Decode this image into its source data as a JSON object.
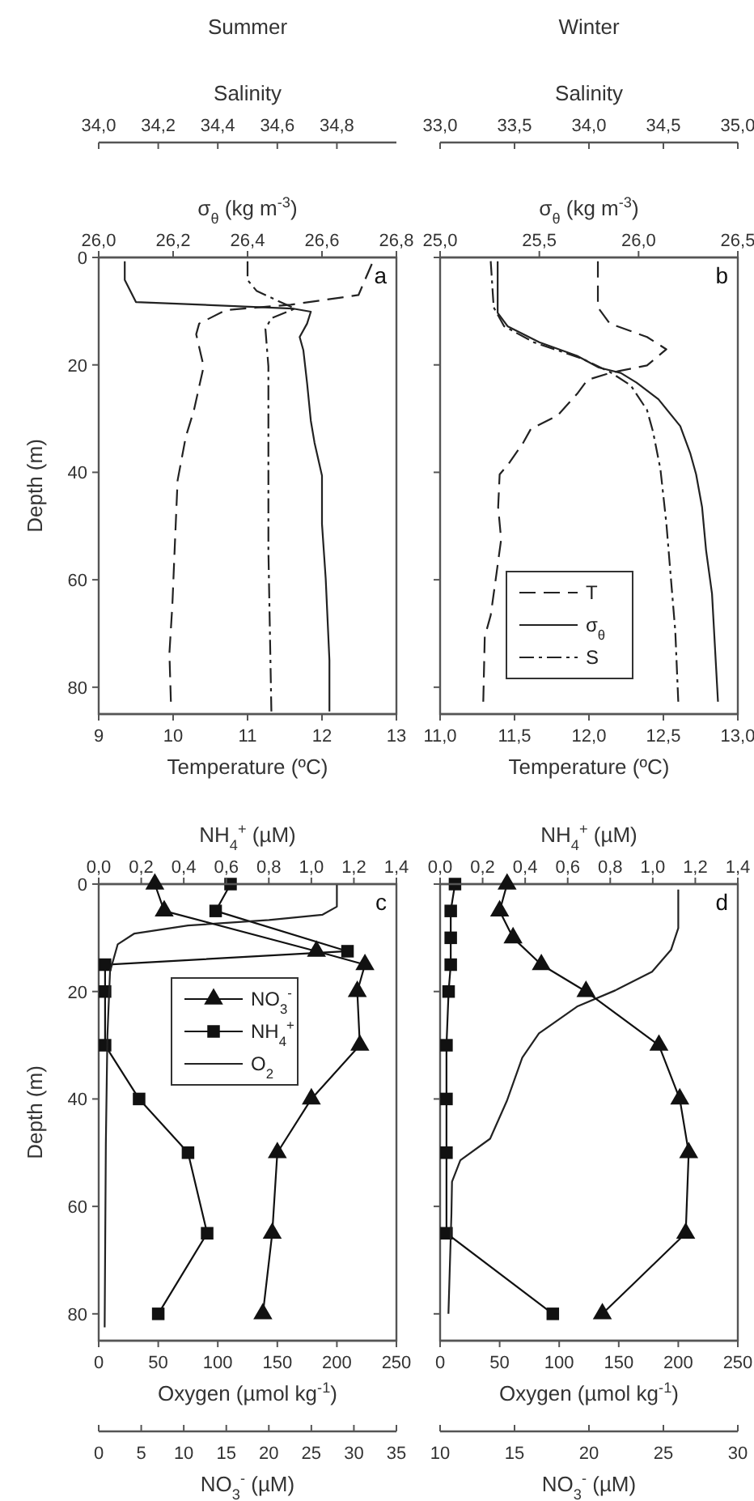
{
  "chart_data": [
    {
      "type": "line",
      "title": "Summer",
      "xlabel": "Temperature (ºC)",
      "x2label": "σ$_{θ}$ (kg m$^{-3}$)",
      "ylabel": "Depth (m)",
      "annotations": [
        "a"
      ],
      "xlim": [
        9,
        13
      ],
      "xticks": [
        9,
        10,
        11,
        12,
        13
      ],
      "x2lim": [
        26,
        26.8
      ],
      "x2ticks": [
        {
          "value": 26,
          "label": "26,0"
        },
        {
          "value": 26.2,
          "label": "26,2"
        },
        {
          "value": 26.4,
          "label": "26,4"
        },
        {
          "value": 26.6,
          "label": "26,6"
        },
        {
          "value": 26.8,
          "label": "26,8"
        }
      ],
      "ylim": [
        85,
        0
      ],
      "yticks": [
        0,
        20,
        40,
        60,
        80
      ],
      "series": [
        {
          "color": "#222222",
          "line_style": "dashed",
          "x": [
            12.67,
            12.49,
            11.58,
            10.71,
            10.35,
            10.31,
            10.41,
            10.28,
            10.17,
            10.06,
            10.02,
            9.99,
            9.95,
            9.97
          ],
          "values": [
            1.2,
            7,
            8.8,
            9.8,
            12.3,
            14.3,
            20.3,
            28.4,
            33.4,
            41.5,
            54.5,
            64.6,
            73.7,
            82.7
          ]
        },
        {
          "color": "#222222",
          "line_style": "solid",
          "axis": "x2",
          "x": [
            26.07,
            26.07,
            26.1,
            26.52,
            26.57,
            26.56,
            26.54,
            26.55,
            26.56,
            26.57,
            26.58,
            26.6,
            26.6,
            26.61,
            26.62,
            26.62
          ],
          "values": [
            0.7,
            4.2,
            8.3,
            9.5,
            10.1,
            12.3,
            14.8,
            17.3,
            23.4,
            30.4,
            34.5,
            40.6,
            49.6,
            59.8,
            75,
            84.5
          ]
        }
      ]
    },
    {
      "type": "line",
      "xlabel": "Salinity",
      "tick_labels": "x",
      "xlim": [
        34,
        35
      ],
      "xticks": [
        {
          "value": 34,
          "label": "34,0"
        },
        {
          "value": 34.2,
          "label": "34,2"
        },
        {
          "value": 34.4,
          "label": "34,4"
        },
        {
          "value": 34.6,
          "label": "34,6"
        },
        {
          "value": 34.8,
          "label": "34,8"
        }
      ],
      "ylim": [
        85,
        0
      ],
      "series": [
        {
          "color": "#222222",
          "line_style": "dashdot",
          "x": [
            34.5,
            34.5,
            34.53,
            34.61,
            34.66,
            34.58,
            34.56,
            34.57,
            34.57,
            34.57,
            34.58
          ],
          "values": [
            0.7,
            4.2,
            6.2,
            8.3,
            9.5,
            11.3,
            13.3,
            20.3,
            34.5,
            54.5,
            84.5
          ]
        }
      ]
    },
    {
      "type": "line",
      "title": "Winter",
      "xlabel": "Temperature (ºC)",
      "x2label": "σ$_{θ}$ (kg m$^{-3}$)",
      "annotations": [
        "b"
      ],
      "tick_labels": "x",
      "legend": "bottom",
      "xlim": [
        11,
        13
      ],
      "xticks": [
        {
          "value": 11,
          "label": "11,0"
        },
        {
          "value": 11.5,
          "label": "11,5"
        },
        {
          "value": 12,
          "label": "12,0"
        },
        {
          "value": 12.5,
          "label": "12,5"
        },
        {
          "value": 13,
          "label": "13,0"
        }
      ],
      "x2lim": [
        25,
        26.5
      ],
      "x2ticks": [
        {
          "value": 25,
          "label": "25,0"
        },
        {
          "value": 25.5,
          "label": "25,5"
        },
        {
          "value": 26,
          "label": "26,0"
        },
        {
          "value": 26.5,
          "label": "26,5"
        }
      ],
      "ylim": [
        85,
        0
      ],
      "yticks": [
        0,
        20,
        40,
        60,
        80
      ],
      "series": [
        {
          "name": "T",
          "color": "#222222",
          "line_style": "dashed",
          "x": [
            12.06,
            12.06,
            12.14,
            12.39,
            12.52,
            12.39,
            12.14,
            11.99,
            11.92,
            11.79,
            11.61,
            11.56,
            11.46,
            11.4,
            11.39,
            11.41,
            11.38,
            11.34,
            11.3,
            11.29
          ],
          "values": [
            0.7,
            9.3,
            12.3,
            14.8,
            17.1,
            20.1,
            21.5,
            22.8,
            25.4,
            29.4,
            31.9,
            34.4,
            38.4,
            40.4,
            46.5,
            52.5,
            58.6,
            66.6,
            70.6,
            82.7
          ]
        },
        {
          "name": "σ$_{θ}$",
          "color": "#222222",
          "line_style": "solid",
          "axis": "x2",
          "x": [
            25.29,
            25.29,
            25.34,
            25.5,
            25.69,
            25.8,
            25.91,
            25.99,
            26.1,
            26.21,
            26.26,
            26.29,
            26.32,
            26.34,
            26.37,
            26.4
          ],
          "values": [
            0.7,
            10.3,
            12.8,
            15.8,
            18.3,
            20.5,
            21.5,
            23.3,
            26.4,
            31.4,
            36.4,
            40.4,
            46.5,
            54.5,
            62.6,
            82.7
          ]
        }
      ]
    },
    {
      "type": "line",
      "xlabel": "Salinity",
      "tick_labels": "x",
      "xlim": [
        33,
        35
      ],
      "xticks": [
        {
          "value": 33,
          "label": "33,0"
        },
        {
          "value": 33.5,
          "label": "33,5"
        },
        {
          "value": 34,
          "label": "34,0"
        },
        {
          "value": 34.5,
          "label": "34,5"
        },
        {
          "value": 35,
          "label": "35,0"
        }
      ],
      "ylim": [
        85,
        0
      ],
      "series": [
        {
          "name": "S",
          "color": "#222222",
          "line_style": "dashdot",
          "x": [
            33.34,
            33.36,
            33.43,
            33.63,
            33.95,
            34.14,
            34.28,
            34.39,
            34.43,
            34.48,
            34.52,
            34.55,
            34.58,
            34.6
          ],
          "values": [
            0.7,
            9.3,
            12.8,
            15.8,
            18.8,
            21.3,
            23.8,
            28.4,
            32.4,
            39.4,
            49.5,
            59.6,
            69.6,
            82.7
          ]
        }
      ]
    },
    {
      "type": "line",
      "xlabel": "Oxygen (µmol kg$^{-1}$)",
      "x2label": "NH$_{4}$$^{+}$ (µM)",
      "ylabel": "Depth (m)",
      "annotations": [
        "c"
      ],
      "xlim": [
        0,
        250
      ],
      "xticks": [
        0,
        50,
        100,
        150,
        200,
        250
      ],
      "x2lim": [
        0,
        1.4
      ],
      "x2ticks": [
        {
          "value": 0,
          "label": "0,0"
        },
        {
          "value": 0.2,
          "label": "0,2"
        },
        {
          "value": 0.4,
          "label": "0,4"
        },
        {
          "value": 0.6,
          "label": "0,6"
        },
        {
          "value": 0.8,
          "label": "0,8"
        },
        {
          "value": 1,
          "label": "1,0"
        },
        {
          "value": 1.2,
          "label": "1,2"
        },
        {
          "value": 1.4,
          "label": "1,4"
        }
      ],
      "ylim": [
        85,
        0
      ],
      "yticks": [
        0,
        20,
        40,
        60,
        80
      ],
      "series": [
        {
          "name": "NH$_{4}$$^{+}$",
          "color": "#111111",
          "line_style": "solid",
          "marker": "square",
          "axis": "x2",
          "x": [
            0.62,
            0.55,
            1.17,
            0.03,
            0.03,
            0.03,
            0.19,
            0.42,
            0.51,
            0.28
          ],
          "values": [
            0,
            5,
            12.5,
            15,
            20,
            30,
            40,
            50,
            65,
            80
          ]
        },
        {
          "name": "O$_{2}$",
          "color": "#222222",
          "line_style": "solid",
          "x": [
            200,
            200,
            188,
            143,
            75,
            30,
            16,
            9.5,
            7.3,
            6,
            5
          ],
          "values": [
            0,
            4.2,
            5.7,
            6.7,
            7.7,
            9.2,
            11.2,
            16.3,
            28.3,
            48.4,
            82.5
          ]
        }
      ]
    },
    {
      "type": "line",
      "xlabel": "NO$_{3}$$^{-}$ (µM)",
      "tick_labels": "x",
      "legend": "top left",
      "xlim": [
        0,
        35
      ],
      "xticks": [
        0,
        5,
        10,
        15,
        20,
        25,
        30,
        35
      ],
      "ylim": [
        85,
        0
      ],
      "series": [
        {
          "name": "NO$_{3}$$^{-}$",
          "color": "#111111",
          "line_style": "solid",
          "marker": "triangle",
          "x": [
            6.6,
            7.7,
            25.6,
            31.3,
            30.4,
            30.7,
            25,
            21,
            20.4,
            19.3
          ],
          "values": [
            0,
            5,
            12.5,
            15,
            20,
            30,
            40,
            50,
            65,
            80
          ]
        }
      ]
    },
    {
      "type": "line",
      "xlabel": "Oxygen (µmol kg$^{-1}$)",
      "x2label": "NH$_{4}$$^{+}$ (µM)",
      "annotations": [
        "d"
      ],
      "tick_labels": "x",
      "xlim": [
        0,
        250
      ],
      "xticks": [
        0,
        50,
        100,
        150,
        200,
        250
      ],
      "x2lim": [
        0,
        1.4
      ],
      "x2ticks": [
        {
          "value": 0,
          "label": "0,0"
        },
        {
          "value": 0.2,
          "label": "0,2"
        },
        {
          "value": 0.4,
          "label": "0,4"
        },
        {
          "value": 0.6,
          "label": "0,6"
        },
        {
          "value": 0.8,
          "label": "0,8"
        },
        {
          "value": 1,
          "label": "1,0"
        },
        {
          "value": 1.2,
          "label": "1,2"
        },
        {
          "value": 1.4,
          "label": "1,4"
        }
      ],
      "ylim": [
        85,
        0
      ],
      "yticks": [
        0,
        20,
        40,
        60,
        80
      ],
      "series": [
        {
          "color": "#111111",
          "line_style": "solid",
          "marker": "square",
          "axis": "x2",
          "x": [
            0.07,
            0.05,
            0.05,
            0.05,
            0.04,
            0.03,
            0.03,
            0.03,
            0.03,
            0.53
          ],
          "values": [
            0,
            5,
            10,
            15,
            20,
            30,
            40,
            50,
            65,
            80
          ]
        },
        {
          "color": "#222222",
          "line_style": "solid",
          "x": [
            200,
            200,
            194,
            178,
            147,
            115,
            83,
            69,
            56,
            42,
            17,
            10,
            9.5,
            7
          ],
          "values": [
            1,
            8.2,
            12.2,
            16.3,
            19.8,
            22.8,
            27.8,
            32.3,
            40.4,
            47.4,
            51.4,
            55.4,
            61.4,
            80
          ]
        }
      ]
    },
    {
      "type": "line",
      "xlabel": "NO$_{3}$$^{-}$ (µM)",
      "tick_labels": "x",
      "xlim": [
        10,
        30
      ],
      "xticks": [
        10,
        15,
        20,
        25,
        30
      ],
      "ylim": [
        85,
        0
      ],
      "series": [
        {
          "color": "#111111",
          "line_style": "solid",
          "marker": "triangle",
          "x": [
            14.5,
            14,
            14.9,
            16.8,
            19.8,
            24.7,
            26.1,
            26.7,
            26.5,
            20.9
          ],
          "values": [
            0,
            5,
            10,
            15,
            20,
            30,
            40,
            50,
            65,
            80
          ]
        }
      ]
    }
  ]
}
